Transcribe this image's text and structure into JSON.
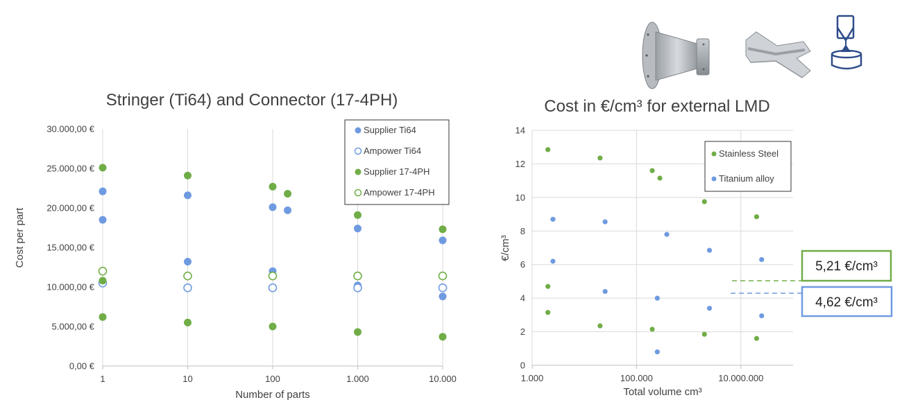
{
  "colors": {
    "blue": "#6f9ae0",
    "green": "#70ad47",
    "grid": "#d9d9d9",
    "axis": "#bfbfbf",
    "icon_navy": "#2f4d8a"
  },
  "icons": [
    "flanged-cone-part-icon",
    "curved-profile-part-icon",
    "lmd-nozzle-icon"
  ],
  "callouts": [
    {
      "label": "5,21 €/cm³",
      "color": "#70ad47"
    },
    {
      "label": "4,62 €/cm³",
      "color": "#6f9ae0"
    }
  ],
  "chart_data": [
    {
      "type": "scatter",
      "title": "Stringer (Ti64) and Connector (17-4PH)",
      "xlabel": "Number of parts",
      "ylabel": "Cost per part",
      "xscale": "log",
      "xlim": [
        1,
        10000
      ],
      "ylim": [
        0,
        30000
      ],
      "x_ticks": [
        1,
        10,
        100,
        1000,
        10000
      ],
      "x_tick_labels": [
        "1",
        "10",
        "100",
        "1.000",
        "10.000"
      ],
      "y_ticks": [
        0,
        5000,
        10000,
        15000,
        20000,
        25000,
        30000
      ],
      "y_tick_labels": [
        "0,00 €",
        "5.000,00 €",
        "10.000,00 €",
        "15.000,00 €",
        "20.000,00 €",
        "25.000,00 €",
        "30.000,00 €"
      ],
      "grid": "vertical",
      "legend_position": "top-right",
      "series": [
        {
          "name": "Supplier Ti64",
          "marker": "filled",
          "color": "#6f9ae0",
          "points": [
            [
              1,
              22100
            ],
            [
              1,
              18500
            ],
            [
              1,
              10500
            ],
            [
              10,
              21600
            ],
            [
              10,
              13200
            ],
            [
              100,
              20100
            ],
            [
              100,
              12000
            ],
            [
              150,
              19700
            ],
            [
              1000,
              17400
            ],
            [
              1000,
              10200
            ],
            [
              10000,
              15900
            ],
            [
              10000,
              8800
            ]
          ]
        },
        {
          "name": "Ampower Ti64",
          "marker": "hollow",
          "color": "#6f9ae0",
          "points": [
            [
              1,
              10500
            ],
            [
              10,
              9900
            ],
            [
              100,
              9900
            ],
            [
              1000,
              9900
            ],
            [
              10000,
              9900
            ]
          ]
        },
        {
          "name": "Supplier 17-4PH",
          "marker": "filled",
          "color": "#70ad47",
          "points": [
            [
              1,
              25100
            ],
            [
              1,
              10800
            ],
            [
              1,
              6200
            ],
            [
              10,
              24100
            ],
            [
              10,
              5500
            ],
            [
              100,
              22700
            ],
            [
              100,
              5000
            ],
            [
              150,
              21800
            ],
            [
              1000,
              19100
            ],
            [
              1000,
              4300
            ],
            [
              10000,
              17300
            ],
            [
              10000,
              3700
            ]
          ]
        },
        {
          "name": "Ampower 17-4PH",
          "marker": "hollow",
          "color": "#70ad47",
          "points": [
            [
              1,
              12000
            ],
            [
              10,
              11400
            ],
            [
              100,
              11400
            ],
            [
              1000,
              11400
            ],
            [
              10000,
              11400
            ]
          ]
        }
      ]
    },
    {
      "type": "scatter",
      "title": "Cost in €/cm³ for external LMD",
      "xlabel": "Total volume cm³",
      "ylabel": "€/cm³",
      "xscale": "log",
      "xlim": [
        1000,
        100000000
      ],
      "ylim": [
        0,
        14
      ],
      "x_ticks": [
        1000,
        100000,
        10000000
      ],
      "x_tick_labels": [
        "1.000",
        "100.000",
        "10.000.000"
      ],
      "y_ticks": [
        0,
        2,
        4,
        6,
        8,
        10,
        12,
        14
      ],
      "y_tick_labels": [
        "0",
        "2",
        "4",
        "6",
        "8",
        "10",
        "12",
        "14"
      ],
      "grid": "both",
      "legend_position": "top-right",
      "reference_lines": [
        {
          "value": 5.21,
          "color": "#70ad47",
          "style": "dashed"
        },
        {
          "value": 4.62,
          "color": "#6f9ae0",
          "style": "dashed"
        }
      ],
      "series": [
        {
          "name": "Stainless Steel",
          "marker": "filled",
          "color": "#70ad47",
          "points": [
            [
              2000,
              12.85
            ],
            [
              2000,
              4.7
            ],
            [
              2000,
              3.15
            ],
            [
              20000,
              12.35
            ],
            [
              20000,
              2.35
            ],
            [
              200000,
              11.6
            ],
            [
              280000,
              11.15
            ],
            [
              200000,
              2.15
            ],
            [
              2000000,
              9.75
            ],
            [
              2000000,
              1.85
            ],
            [
              20000000,
              8.85
            ],
            [
              20000000,
              1.6
            ]
          ]
        },
        {
          "name": "Titanium alloy",
          "marker": "filled",
          "color": "#6f9ae0",
          "points": [
            [
              2500,
              8.7
            ],
            [
              2500,
              6.2
            ],
            [
              25000,
              8.55
            ],
            [
              25000,
              4.4
            ],
            [
              380000,
              7.8
            ],
            [
              250000,
              4.0
            ],
            [
              250000,
              0.8
            ],
            [
              2500000,
              6.85
            ],
            [
              2500000,
              3.4
            ],
            [
              25000000,
              6.3
            ],
            [
              25000000,
              2.95
            ]
          ]
        }
      ]
    }
  ]
}
